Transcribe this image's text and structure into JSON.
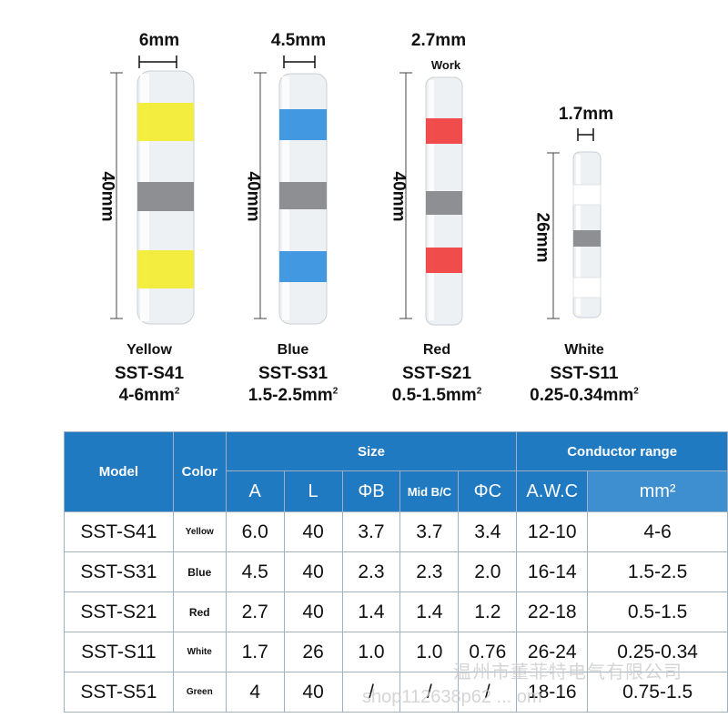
{
  "products": [
    {
      "width_label": "6mm",
      "length_label": "40mm",
      "color_name": "Yellow",
      "model": "SST-S41",
      "range": "4-6mm",
      "band_color": "#f2ec2a"
    },
    {
      "width_label": "4.5mm",
      "length_label": "40mm",
      "color_name": "Blue",
      "model": "SST-S31",
      "range": "1.5-2.5mm",
      "band_color": "#2f8fe0"
    },
    {
      "width_label": "2.7mm",
      "length_label": "40mm",
      "color_name": "Red",
      "model": "SST-S21",
      "range": "0.5-1.5mm",
      "band_color": "#ef3a3a",
      "note": "Work"
    },
    {
      "width_label": "1.7mm",
      "length_label": "26mm",
      "color_name": "White",
      "model": "SST-S11",
      "range": "0.25-0.34mm",
      "band_color": "#ffffff"
    }
  ],
  "superscript": "2",
  "table": {
    "header": {
      "model": "Model",
      "color": "Color",
      "size": "Size",
      "conductor_range": "Conductor range",
      "a": "A",
      "l": "L",
      "phib": "ΦB",
      "mid": "Mid B/C",
      "phic": "ΦC",
      "awc": "A.W.C",
      "mm2": "mm²"
    },
    "rows": [
      {
        "model": "SST-S41",
        "color": "Yellow",
        "a": "6.0",
        "l": "40",
        "b": "3.7",
        "mid": "3.7",
        "c": "3.4",
        "awc": "12-10",
        "mm2": "4-6"
      },
      {
        "model": "SST-S31",
        "color": "Blue",
        "a": "4.5",
        "l": "40",
        "b": "2.3",
        "mid": "2.3",
        "c": "2.0",
        "awc": "16-14",
        "mm2": "1.5-2.5"
      },
      {
        "model": "SST-S21",
        "color": "Red",
        "a": "2.7",
        "l": "40",
        "b": "1.4",
        "mid": "1.4",
        "c": "1.2",
        "awc": "22-18",
        "mm2": "0.5-1.5"
      },
      {
        "model": "SST-S11",
        "color": "White",
        "a": "1.7",
        "l": "26",
        "b": "1.0",
        "mid": "1.0",
        "c": "0.76",
        "awc": "26-24",
        "mm2": "0.25-0.34"
      },
      {
        "model": "SST-S51",
        "color": "Green",
        "a": "4",
        "l": "40",
        "b": "/",
        "mid": "/",
        "c": "/",
        "awc": "18-16",
        "mm2": "0.75-1.5"
      }
    ]
  },
  "header_color": "#1f7ac2",
  "watermark": {
    "line1": "温州市董菲特电气有限公司",
    "line2": "shop112638p62 ... om"
  }
}
